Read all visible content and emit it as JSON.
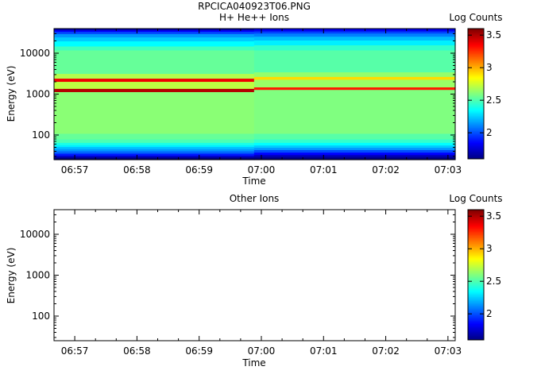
{
  "figure": {
    "filename": "RPCICA040923T06.PNG"
  },
  "chart_data": [
    {
      "type": "heatmap",
      "title": "H+ He++ Ions",
      "xlabel": "Time",
      "ylabel": "Energy (eV)",
      "y_scale": "log",
      "ylim": [
        25,
        40000
      ],
      "x_ticks": [
        "06:57",
        "06:58",
        "06:59",
        "07:00",
        "07:01",
        "07:02",
        "07:03"
      ],
      "y_ticks": [
        {
          "value": 100,
          "label": "100"
        },
        {
          "value": 1000,
          "label": "1000"
        },
        {
          "value": 10000,
          "label": "10000"
        }
      ],
      "colorbar": {
        "label": "Log Counts",
        "range": [
          1.6,
          3.6
        ],
        "ticks": [
          {
            "value": 2,
            "label": "2"
          },
          {
            "value": 2.5,
            "label": "2.5"
          },
          {
            "value": 3,
            "label": "3"
          },
          {
            "value": 3.5,
            "label": "3.5"
          }
        ]
      },
      "time_segments": [
        {
          "start": "06:56:40",
          "end": "06:59:53",
          "energy_bands": [
            {
              "from": 25,
              "to": 29,
              "value": 1.55
            },
            {
              "from": 29,
              "to": 32,
              "value": 1.75
            },
            {
              "from": 32,
              "to": 36,
              "value": 1.9
            },
            {
              "from": 36,
              "to": 41,
              "value": 2.05
            },
            {
              "from": 41,
              "to": 46,
              "value": 2.15
            },
            {
              "from": 46,
              "to": 52,
              "value": 2.22
            },
            {
              "from": 52,
              "to": 58,
              "value": 2.32
            },
            {
              "from": 58,
              "to": 66,
              "value": 2.4
            },
            {
              "from": 66,
              "to": 80,
              "value": 2.5
            },
            {
              "from": 80,
              "to": 110,
              "value": 2.55
            },
            {
              "from": 110,
              "to": 1150,
              "value": 2.62
            },
            {
              "from": 1150,
              "to": 1380,
              "value": 3.5
            },
            {
              "from": 1380,
              "to": 2050,
              "value": 2.72
            },
            {
              "from": 2050,
              "to": 2450,
              "value": 3.38
            },
            {
              "from": 2450,
              "to": 3200,
              "value": 2.7
            },
            {
              "from": 3200,
              "to": 12000,
              "value": 2.55
            },
            {
              "from": 12000,
              "to": 15000,
              "value": 2.48
            },
            {
              "from": 15000,
              "to": 20000,
              "value": 2.35
            },
            {
              "from": 20000,
              "to": 25000,
              "value": 2.25
            },
            {
              "from": 25000,
              "to": 30000,
              "value": 2.15
            },
            {
              "from": 30000,
              "to": 34000,
              "value": 2.0
            },
            {
              "from": 34000,
              "to": 37000,
              "value": 1.85
            },
            {
              "from": 37000,
              "to": 40000,
              "value": 1.7
            }
          ]
        },
        {
          "start": "06:59:53",
          "end": "07:03:07",
          "energy_bands": [
            {
              "from": 25,
              "to": 29,
              "value": 1.55
            },
            {
              "from": 29,
              "to": 33,
              "value": 1.7
            },
            {
              "from": 33,
              "to": 38,
              "value": 1.85
            },
            {
              "from": 38,
              "to": 44,
              "value": 2.0
            },
            {
              "from": 44,
              "to": 50,
              "value": 2.15
            },
            {
              "from": 50,
              "to": 57,
              "value": 2.25
            },
            {
              "from": 57,
              "to": 66,
              "value": 2.35
            },
            {
              "from": 66,
              "to": 80,
              "value": 2.45
            },
            {
              "from": 80,
              "to": 110,
              "value": 2.52
            },
            {
              "from": 110,
              "to": 1300,
              "value": 2.6
            },
            {
              "from": 1300,
              "to": 1500,
              "value": 3.3
            },
            {
              "from": 1500,
              "to": 2300,
              "value": 2.65
            },
            {
              "from": 2300,
              "to": 2700,
              "value": 2.92
            },
            {
              "from": 2700,
              "to": 3500,
              "value": 2.64
            },
            {
              "from": 3500,
              "to": 12000,
              "value": 2.52
            },
            {
              "from": 12000,
              "to": 16000,
              "value": 2.45
            },
            {
              "from": 16000,
              "to": 21000,
              "value": 2.32
            },
            {
              "from": 21000,
              "to": 26000,
              "value": 2.22
            },
            {
              "from": 26000,
              "to": 31000,
              "value": 2.1
            },
            {
              "from": 31000,
              "to": 35000,
              "value": 1.98
            },
            {
              "from": 35000,
              "to": 40000,
              "value": 1.82
            }
          ]
        }
      ]
    },
    {
      "type": "heatmap",
      "title": "Other Ions",
      "xlabel": "Time",
      "ylabel": "Energy (eV)",
      "y_scale": "log",
      "ylim": [
        25,
        40000
      ],
      "x_ticks": [
        "06:57",
        "06:58",
        "06:59",
        "07:00",
        "07:01",
        "07:02",
        "07:03"
      ],
      "y_ticks": [
        {
          "value": 100,
          "label": "100"
        },
        {
          "value": 1000,
          "label": "1000"
        },
        {
          "value": 10000,
          "label": "10000"
        }
      ],
      "colorbar": {
        "label": "Log Counts",
        "range": [
          1.6,
          3.6
        ],
        "ticks": [
          {
            "value": 2,
            "label": "2"
          },
          {
            "value": 2.5,
            "label": "2.5"
          },
          {
            "value": 3,
            "label": "3"
          },
          {
            "value": 3.5,
            "label": "3.5"
          }
        ]
      },
      "time_segments": []
    }
  ]
}
